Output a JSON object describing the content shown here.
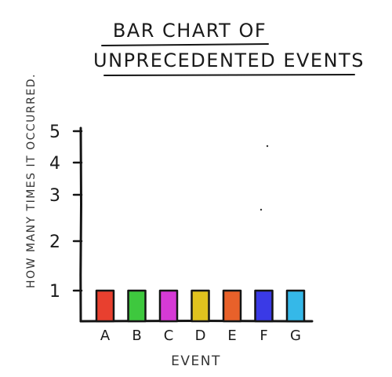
{
  "chart_data": {
    "type": "bar",
    "title_lines": [
      "BAR CHART OF",
      "UNPRECEDENTED EVENTS"
    ],
    "xlabel": "EVENT",
    "ylabel": "HOW MANY TIMES IT OCCURRED.",
    "categories": [
      "A",
      "B",
      "C",
      "D",
      "E",
      "F",
      "G"
    ],
    "values": [
      1,
      1,
      1,
      1,
      1,
      1,
      1
    ],
    "colors": [
      "#e8402f",
      "#3ec83e",
      "#d63ad6",
      "#e0c21e",
      "#e8612a",
      "#3a3ae6",
      "#35b8e8"
    ],
    "ylim": [
      0,
      5
    ],
    "yticks": [
      1,
      2,
      3,
      4,
      5
    ],
    "ytick_labels": [
      "1",
      "2",
      "3",
      "4",
      "5"
    ],
    "grid": false,
    "legend": "none"
  }
}
